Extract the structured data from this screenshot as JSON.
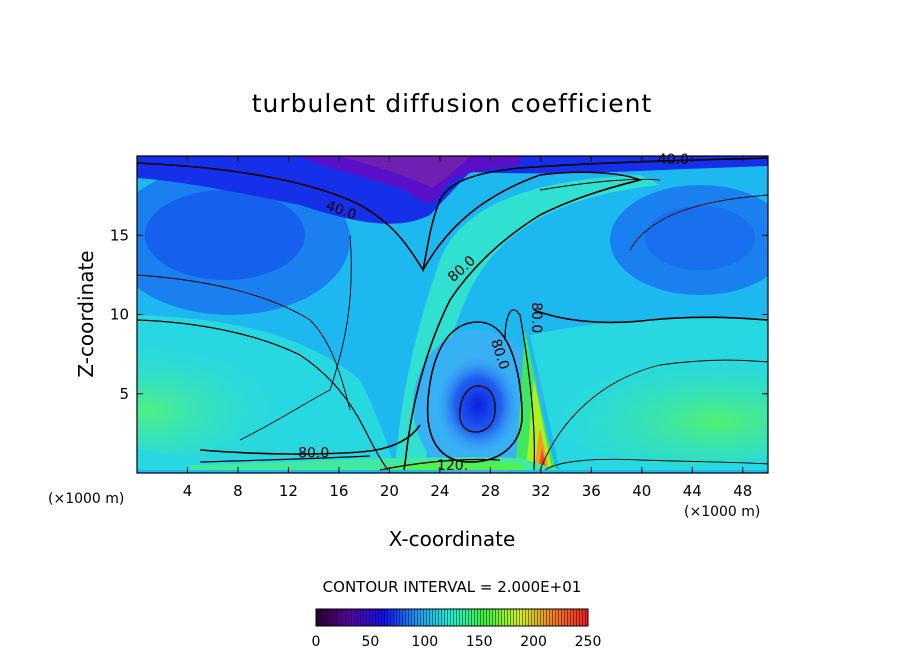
{
  "chart_data": {
    "type": "heatmap",
    "title": "turbulent diffusion coefficient",
    "xlabel": "X-coordinate",
    "ylabel": "Z-coordinate",
    "x_unit": "(×1000 m)",
    "y_unit": "(×1000 m)",
    "xlim": [
      0,
      50
    ],
    "ylim": [
      0,
      20
    ],
    "x_ticks": [
      4,
      8,
      12,
      16,
      20,
      24,
      28,
      32,
      36,
      40,
      44,
      48
    ],
    "y_ticks": [
      5,
      10,
      15
    ],
    "contour_interval_text": "CONTOUR INTERVAL = 2.000E+01",
    "colorbar": {
      "min": 0,
      "max": 250,
      "ticks": [
        0,
        50,
        100,
        150,
        200,
        250
      ]
    },
    "contour_labels": [
      {
        "text": "40.0",
        "x": 16.2,
        "z": 16.6,
        "angle": 20
      },
      {
        "text": "40.0",
        "x": 42.5,
        "z": 19.8,
        "angle": 0
      },
      {
        "text": "80.0",
        "x": 25.7,
        "z": 12.9,
        "angle": -42
      },
      {
        "text": "80.0",
        "x": 28.8,
        "z": 7.5,
        "angle": 72
      },
      {
        "text": "80.0",
        "x": 31.7,
        "z": 9.8,
        "angle": 90
      },
      {
        "text": "80.0",
        "x": 14.0,
        "z": 1.3,
        "angle": 0
      },
      {
        "text": "120.",
        "x": 25.0,
        "z": 0.5,
        "angle": 0
      }
    ]
  }
}
